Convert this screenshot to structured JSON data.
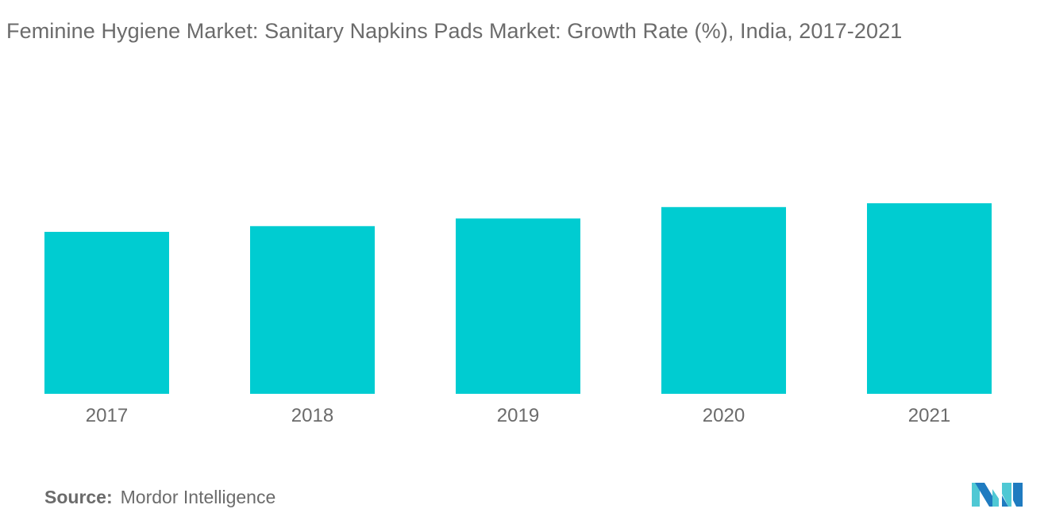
{
  "title": "Feminine Hygiene Market: Sanitary Napkins  Pads Market:  Growth Rate (%), India, 2017-2021",
  "source_label": "Source:",
  "source_value": "Mordor Intelligence",
  "logo_text": "Mordor Intelligence",
  "chart_data": {
    "type": "bar",
    "title": "Feminine Hygiene Market: Sanitary Napkins  Pads Market:  Growth Rate (%), India, 2017-2021",
    "categories": [
      "2017",
      "2018",
      "2019",
      "2020",
      "2021"
    ],
    "values": [
      8.5,
      8.8,
      9.2,
      9.8,
      10.0
    ],
    "ylim": [
      0,
      12
    ],
    "xlabel": "",
    "ylabel": "",
    "grid": false,
    "y_axis_shown": false,
    "bar_color": "#00ccd1",
    "text_color": "#6b6b6b"
  }
}
